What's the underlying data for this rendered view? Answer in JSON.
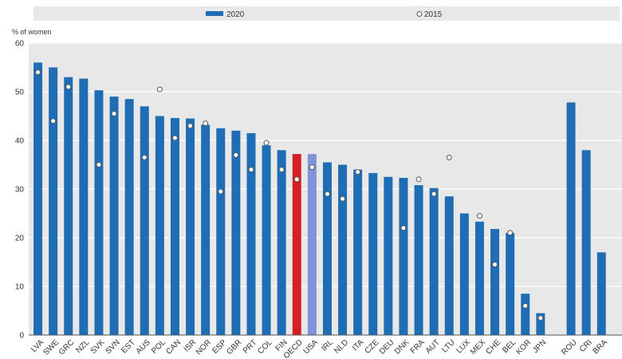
{
  "colors": {
    "bar": "#1f6db5",
    "highlight_oecd": "#d31f26",
    "highlight_usa": "#8093d6",
    "grid": "#ffffff",
    "plot_bg": "#e8e8e8",
    "legend_bg": "#e8e8e8",
    "marker_fill": "#ffffff",
    "marker_stroke": "#555555"
  },
  "legend": {
    "series_2020": "2020",
    "series_2015": "2015"
  },
  "chart_data": {
    "type": "bar",
    "ylabel": "% of women",
    "ylim": [
      0,
      60
    ],
    "yticks": [
      0,
      10,
      20,
      30,
      40,
      50,
      60
    ],
    "grid": true,
    "legend_position": "top",
    "categories": [
      "LVA",
      "SWE",
      "GRC",
      "NZL",
      "SVK",
      "SVN",
      "EST",
      "AUS",
      "POL",
      "CAN",
      "ISR",
      "NOR",
      "ESP",
      "GBR",
      "PRT",
      "COL",
      "FIN",
      "OECD",
      "USA",
      "IRL",
      "NLD",
      "ITA",
      "CZE",
      "DEU",
      "DNK",
      "FRA",
      "AUT",
      "LTU",
      "LUX",
      "MEX",
      "CHE",
      "BEL",
      "KOR",
      "JPN",
      "",
      "ROU",
      "CRI",
      "BRA"
    ],
    "series": [
      {
        "name": "2020",
        "kind": "bar",
        "values": [
          56,
          55,
          53,
          52.7,
          50.3,
          49,
          48.5,
          47,
          45,
          44.6,
          44.5,
          43.2,
          42.5,
          42,
          41.5,
          39,
          38,
          37.2,
          37.2,
          35.5,
          35,
          34,
          33.3,
          32.5,
          32.3,
          30.8,
          30.2,
          28.5,
          25,
          23.3,
          21.8,
          21,
          8.5,
          4.5,
          null,
          47.8,
          38,
          17
        ]
      },
      {
        "name": "2015",
        "kind": "marker",
        "values": [
          54,
          44,
          51,
          null,
          35,
          45.5,
          null,
          36.5,
          50.5,
          40.5,
          43,
          43.5,
          29.5,
          37,
          34,
          39.5,
          34,
          32,
          34.5,
          29,
          28,
          33.5,
          null,
          null,
          22,
          32,
          29,
          36.5,
          null,
          24.5,
          14.5,
          21,
          6,
          3.5,
          null,
          null,
          null,
          null
        ]
      }
    ]
  }
}
